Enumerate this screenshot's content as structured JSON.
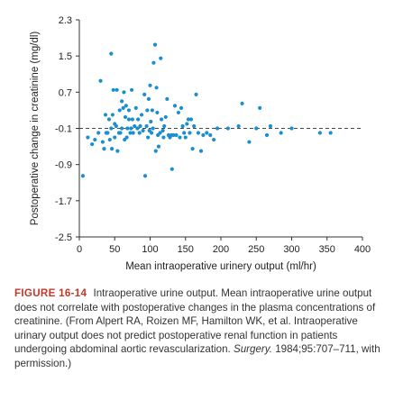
{
  "chart_data": {
    "type": "scatter",
    "title": "",
    "xlabel": "Mean intraoperative urinery output (ml/hr)",
    "ylabel": "Postoperative change in creatinine (mg/dl)",
    "xlim": [
      0,
      400
    ],
    "ylim": [
      -2.5,
      2.3
    ],
    "xticks": [
      "0",
      "50",
      "100",
      "150",
      "200",
      "250",
      "300",
      "350",
      "400"
    ],
    "yticks": [
      "2.3",
      "1.5",
      "0.7",
      "-0.1",
      "-0.9",
      "-1.7",
      "-2.5"
    ],
    "reference_line": {
      "y": -0.1,
      "style": "dashed"
    },
    "point_color": "#1a8fd0",
    "points": [
      [
        5,
        -1.15
      ],
      [
        12,
        -0.3
      ],
      [
        18,
        -0.45
      ],
      [
        22,
        -0.35
      ],
      [
        27,
        -0.2
      ],
      [
        30,
        0.95
      ],
      [
        33,
        -0.4
      ],
      [
        35,
        -0.55
      ],
      [
        37,
        0.2
      ],
      [
        38,
        -0.2
      ],
      [
        40,
        -0.2
      ],
      [
        42,
        0.1
      ],
      [
        43,
        -0.35
      ],
      [
        45,
        1.55
      ],
      [
        45,
        -0.1
      ],
      [
        46,
        -0.55
      ],
      [
        47,
        0.2
      ],
      [
        48,
        0.75
      ],
      [
        50,
        -0.3
      ],
      [
        50,
        0.0
      ],
      [
        52,
        -0.05
      ],
      [
        53,
        0.75
      ],
      [
        54,
        -0.6
      ],
      [
        56,
        -0.2
      ],
      [
        57,
        0.3
      ],
      [
        58,
        -0.2
      ],
      [
        60,
        0.5
      ],
      [
        60,
        -0.1
      ],
      [
        62,
        0.35
      ],
      [
        63,
        0.7
      ],
      [
        64,
        -0.35
      ],
      [
        65,
        0.15
      ],
      [
        66,
        0.4
      ],
      [
        67,
        -0.3
      ],
      [
        68,
        -0.1
      ],
      [
        70,
        0.1
      ],
      [
        70,
        0.3
      ],
      [
        72,
        -0.2
      ],
      [
        73,
        -0.1
      ],
      [
        74,
        0.75
      ],
      [
        75,
        0.1
      ],
      [
        76,
        -0.2
      ],
      [
        78,
        -0.05
      ],
      [
        80,
        0.35
      ],
      [
        82,
        -0.1
      ],
      [
        83,
        0.1
      ],
      [
        85,
        -0.2
      ],
      [
        86,
        -0.05
      ],
      [
        88,
        0.2
      ],
      [
        90,
        -0.15
      ],
      [
        92,
        0.65
      ],
      [
        93,
        -1.15
      ],
      [
        95,
        -0.05
      ],
      [
        96,
        0.3
      ],
      [
        97,
        -0.3
      ],
      [
        98,
        0.55
      ],
      [
        99,
        -0.15
      ],
      [
        100,
        0.85
      ],
      [
        101,
        0.05
      ],
      [
        102,
        -0.2
      ],
      [
        103,
        0.3
      ],
      [
        104,
        -0.1
      ],
      [
        105,
        1.35
      ],
      [
        107,
        1.75
      ],
      [
        108,
        -0.6
      ],
      [
        109,
        0.8
      ],
      [
        110,
        0.25
      ],
      [
        111,
        -0.25
      ],
      [
        112,
        -0.5
      ],
      [
        114,
        -0.2
      ],
      [
        115,
        1.45
      ],
      [
        116,
        0.1
      ],
      [
        118,
        -0.15
      ],
      [
        119,
        -0.3
      ],
      [
        120,
        -0.05
      ],
      [
        122,
        0.15
      ],
      [
        124,
        0.55
      ],
      [
        126,
        -0.25
      ],
      [
        128,
        -0.3
      ],
      [
        130,
        -0.25
      ],
      [
        131,
        -1.0
      ],
      [
        133,
        -0.25
      ],
      [
        135,
        0.4
      ],
      [
        137,
        -0.25
      ],
      [
        140,
        0.25
      ],
      [
        142,
        -0.3
      ],
      [
        144,
        0.35
      ],
      [
        146,
        -0.05
      ],
      [
        148,
        -0.2
      ],
      [
        150,
        -0.3
      ],
      [
        152,
        0.0
      ],
      [
        154,
        0.1
      ],
      [
        156,
        -0.2
      ],
      [
        158,
        0.1
      ],
      [
        160,
        -0.55
      ],
      [
        162,
        -0.05
      ],
      [
        165,
        0.65
      ],
      [
        168,
        -0.2
      ],
      [
        172,
        -0.6
      ],
      [
        175,
        -0.25
      ],
      [
        180,
        -0.2
      ],
      [
        185,
        -0.25
      ],
      [
        190,
        -0.35
      ],
      [
        195,
        -0.1
      ],
      [
        210,
        -0.1
      ],
      [
        225,
        -0.05
      ],
      [
        230,
        0.45
      ],
      [
        240,
        -0.4
      ],
      [
        250,
        -0.1
      ],
      [
        255,
        0.35
      ],
      [
        265,
        -0.25
      ],
      [
        270,
        -0.05
      ],
      [
        285,
        -0.2
      ],
      [
        300,
        -0.1
      ],
      [
        340,
        -0.2
      ],
      [
        355,
        -0.2
      ]
    ]
  },
  "caption": {
    "label": "FIGURE 16-14",
    "text": "Intraoperative urine output. Mean intraoperative urine output does not correlate with postoperative changes in the plasma concentrations of creatinine. (From Alpert RA, Roizen MF, Hamilton WK, et al. Intraoperative urinary output does not predict postoperative renal function in patients undergoing abdominal aortic revascularization.",
    "journal": "Surgery.",
    "citation": "1984;95:707–711, with permission.)"
  }
}
